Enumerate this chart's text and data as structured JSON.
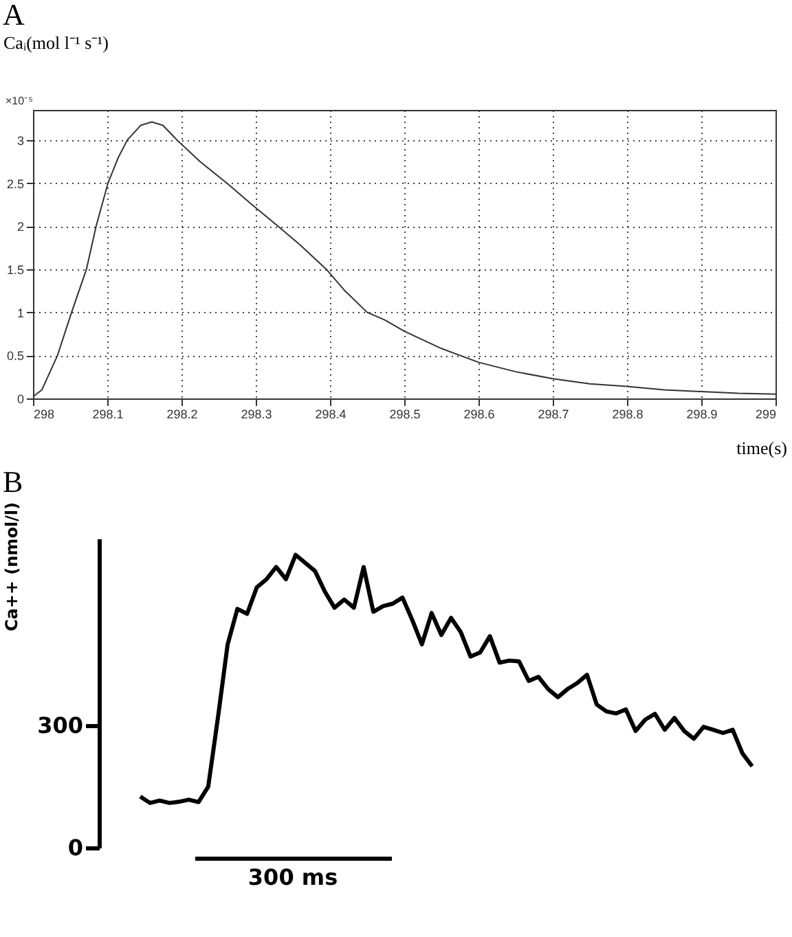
{
  "chart_data": [
    {
      "type": "line",
      "title": "A",
      "ylabel": "Caᵢ(mol l⁻¹ s⁻¹)",
      "xlabel": "time(s)",
      "annotations": [
        "×10⁻⁵"
      ],
      "x": [
        298,
        298.012,
        298.033,
        298.052,
        298.072,
        298.085,
        298.101,
        298.115,
        298.127,
        298.145,
        298.16,
        298.175,
        298.194,
        298.225,
        298.261,
        298.295,
        298.33,
        298.36,
        298.395,
        298.42,
        298.45,
        298.474,
        298.5,
        298.55,
        298.6,
        298.65,
        298.7,
        298.75,
        298.8,
        298.85,
        298.9,
        298.95,
        299
      ],
      "series": [
        {
          "color": "#333333",
          "values": [
            0.02,
            0.1,
            0.5,
            1,
            1.5,
            2,
            2.5,
            2.8,
            3,
            3.17,
            3.21,
            3.17,
            3,
            2.75,
            2.5,
            2.25,
            2,
            1.78,
            1.5,
            1.25,
            1,
            0.91,
            0.78,
            0.58,
            0.42,
            0.31,
            0.23,
            0.17,
            0.14,
            0.1,
            0.08,
            0.06,
            0.05
          ]
        }
      ],
      "xlim": [
        298,
        299
      ],
      "xticks": [
        298,
        298.1,
        298.2,
        298.3,
        298.4,
        298.5,
        298.6,
        298.7,
        298.8,
        298.9,
        299
      ],
      "ylim": [
        0,
        3.35
      ],
      "yticks": [
        0,
        0.5,
        1,
        1.5,
        2,
        2.5,
        3
      ],
      "grid": true,
      "line_style": "solid"
    },
    {
      "type": "line",
      "title": "B",
      "ylabel": "Ca++ (nmol/l)",
      "annotations": [
        "300 ms"
      ],
      "tick_labels": "y",
      "categories": [
        null,
        null,
        null,
        null,
        null,
        null,
        null,
        null,
        null,
        null,
        null,
        null,
        null,
        null,
        null,
        null,
        null,
        null,
        null,
        null,
        null,
        null,
        null,
        null,
        null,
        null,
        null,
        null,
        null,
        null,
        null,
        null,
        null,
        null,
        null,
        null,
        null,
        null,
        null,
        null,
        null,
        null,
        null,
        null,
        null,
        null,
        null,
        null,
        null,
        null,
        null,
        null,
        null,
        null,
        null,
        null,
        null,
        null,
        null,
        null,
        null,
        null,
        null,
        null
      ],
      "series": [
        {
          "color": "#000000",
          "values": [
            126,
            110,
            116,
            110,
            113,
            118,
            112,
            150,
            320,
            500,
            587,
            575,
            640,
            660,
            690,
            660,
            720,
            700,
            680,
            630,
            590,
            610,
            590,
            690,
            580,
            594,
            600,
            615,
            560,
            500,
            577,
            523,
            565,
            530,
            470,
            480,
            520,
            455,
            460,
            458,
            410,
            420,
            390,
            370,
            390,
            405,
            425,
            352,
            335,
            330,
            340,
            287,
            315,
            329,
            290,
            319,
            287,
            268,
            297,
            290,
            282,
            290,
            232,
            200
          ]
        }
      ],
      "ylim": [
        0,
        760
      ],
      "yticks": [
        0,
        300
      ],
      "grid": false,
      "line_style": "solid"
    }
  ]
}
